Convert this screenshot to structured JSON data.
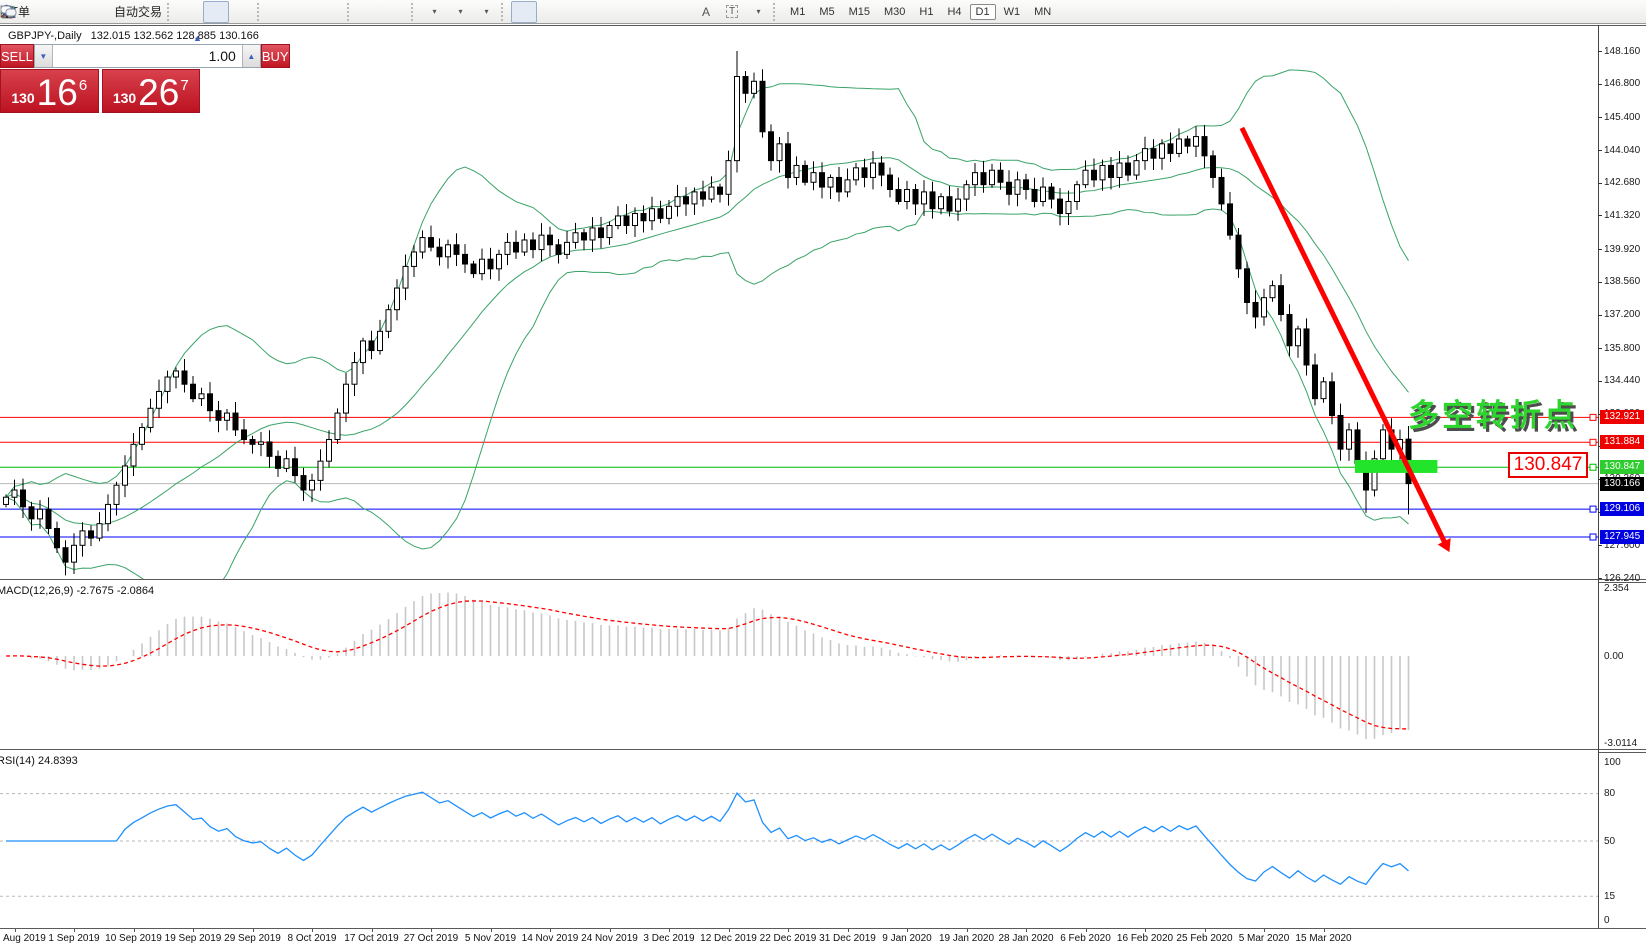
{
  "toolbar": {
    "order_label": "订单",
    "autotrade_label": "自动交易",
    "timeframes": [
      "M1",
      "M5",
      "M15",
      "M30",
      "H1",
      "H4",
      "D1",
      "W1",
      "MN"
    ],
    "active_timeframe": "D1"
  },
  "info_line": {
    "symbol_period": "GBPJPY-,Daily",
    "ohlc": "132.015 132.562 128.885 130.166"
  },
  "trade_panel": {
    "sell_label": "SELL",
    "buy_label": "BUY",
    "volume": "1.00",
    "sell_price": {
      "prefix": "130",
      "big": "16",
      "sup": "6"
    },
    "buy_price": {
      "prefix": "130",
      "big": "26",
      "sup": "7"
    }
  },
  "annotation": {
    "text": "多空转折点",
    "color": "#2ED52E"
  },
  "price_callout": "130.847",
  "chart_data": {
    "type": "candlestick",
    "symbol": "GBPJPY-",
    "period": "Daily",
    "x_dates": [
      "Aug 2019",
      "1 Sep 2019",
      "10 Sep 2019",
      "19 Sep 2019",
      "29 Sep 2019",
      "8 Oct 2019",
      "17 Oct 2019",
      "27 Oct 2019",
      "5 Nov 2019",
      "14 Nov 2019",
      "24 Nov 2019",
      "3 Dec 2019",
      "12 Dec 2019",
      "22 Dec 2019",
      "31 Dec 2019",
      "9 Jan 2020",
      "19 Jan 2020",
      "28 Jan 2020",
      "6 Feb 2020",
      "16 Feb 2020",
      "25 Feb 2020",
      "5 Mar 2020",
      "15 Mar 2020"
    ],
    "first_open": 129.3,
    "closes": [
      129.6,
      129.9,
      129.2,
      128.7,
      129.1,
      128.3,
      127.5,
      126.9,
      127.6,
      128.2,
      127.9,
      128.5,
      129.3,
      130.1,
      130.9,
      131.8,
      132.5,
      133.3,
      134.0,
      134.6,
      134.85,
      134.3,
      133.7,
      133.9,
      133.2,
      132.8,
      133.1,
      132.4,
      132.0,
      131.8,
      131.9,
      131.3,
      130.8,
      131.2,
      130.5,
      129.9,
      130.3,
      131.1,
      132.0,
      133.1,
      134.3,
      135.2,
      136.1,
      135.7,
      136.5,
      137.4,
      138.3,
      139.2,
      139.8,
      140.4,
      140.0,
      139.6,
      140.1,
      139.7,
      139.3,
      138.9,
      139.5,
      139.1,
      139.7,
      140.2,
      139.8,
      140.3,
      139.9,
      140.5,
      140.1,
      139.7,
      140.2,
      140.6,
      140.3,
      140.8,
      140.4,
      140.9,
      141.3,
      140.9,
      141.4,
      141.1,
      141.6,
      141.2,
      141.7,
      142.1,
      141.8,
      142.3,
      142.0,
      142.5,
      142.2,
      143.6,
      147.1,
      146.4,
      146.9,
      144.8,
      143.6,
      144.3,
      142.9,
      143.4,
      142.7,
      143.1,
      142.5,
      142.9,
      142.3,
      142.8,
      143.3,
      142.9,
      143.5,
      143.0,
      142.4,
      141.9,
      142.4,
      141.8,
      142.3,
      141.6,
      142.1,
      141.5,
      142.0,
      142.6,
      143.1,
      142.6,
      143.2,
      142.7,
      142.2,
      142.8,
      142.4,
      141.9,
      142.5,
      142.0,
      141.4,
      141.9,
      142.6,
      143.2,
      142.8,
      143.4,
      142.9,
      143.5,
      143.0,
      143.6,
      144.1,
      143.7,
      144.3,
      143.9,
      144.5,
      144.2,
      144.6,
      143.8,
      142.9,
      141.8,
      140.5,
      139.1,
      137.7,
      137.1,
      137.9,
      138.4,
      137.2,
      135.9,
      136.6,
      135.1,
      133.7,
      134.4,
      133.0,
      131.6,
      132.4,
      131.0,
      129.9,
      131.2,
      132.4,
      131.6,
      132.0,
      130.17
    ],
    "special_candles": {
      "7": {
        "low": 126.35
      },
      "20": {
        "high": 135.0
      },
      "35": {
        "low": 129.45
      },
      "86": {
        "high": 148.16
      },
      "160": {
        "low": 128.95
      },
      "165": {
        "open": 132.015,
        "high": 132.562,
        "low": 128.885,
        "close": 130.166
      }
    },
    "y_axis": {
      "price_top": 148.16,
      "price_bottom": 126.24,
      "ticks": [
        "148.160",
        "146.800",
        "145.400",
        "144.040",
        "142.680",
        "141.320",
        "139.920",
        "138.560",
        "137.200",
        "135.800",
        "134.440",
        "133.080",
        "131.720",
        "130.360",
        "129.000",
        "127.600",
        "126.240"
      ]
    },
    "levels": [
      {
        "price": 132.921,
        "color": "#FF0000",
        "badge_bg": "#EE0000"
      },
      {
        "price": 131.884,
        "color": "#FF0000",
        "badge_bg": "#EE0000"
      },
      {
        "price": 130.847,
        "color": "#00BB00",
        "badge_bg": "#2FCC2F"
      },
      {
        "price": 130.166,
        "color": "#B8B8B8",
        "badge_bg": "#000000"
      },
      {
        "price": 129.106,
        "color": "#0000FF",
        "badge_bg": "#0000E0"
      },
      {
        "price": 127.945,
        "color": "#0000FF",
        "badge_bg": "#0000E0"
      }
    ],
    "bollinger": {
      "period": 20,
      "deviation": 2,
      "color": "#3AA368"
    },
    "highlight_rect": {
      "i0": 158.7,
      "i1": 168.4,
      "p0": 130.61,
      "p1": 131.15,
      "color": "#22E42A"
    },
    "trend_arrow": {
      "i0": 145.4,
      "p0": 144.96,
      "i1": 169.3,
      "p1": 127.69,
      "color": "#FF0000"
    },
    "macd": {
      "label": "MACD(12,26,9) -2.7675 -2.0864",
      "fast": 12,
      "slow": 26,
      "signal": 9,
      "axis": [
        "2.354",
        "0.00",
        "-3.0114"
      ],
      "max": 2.354,
      "min": -3.0114,
      "hist_color": "#C8C8C8",
      "signal_color": "#FF0000"
    },
    "rsi": {
      "label": "RSI(14) 24.8393",
      "period": 14,
      "axis": [
        "100",
        "80",
        "50",
        "15",
        "0"
      ],
      "dashed_levels": [
        80,
        50,
        15
      ],
      "color": "#1E90FF"
    }
  }
}
